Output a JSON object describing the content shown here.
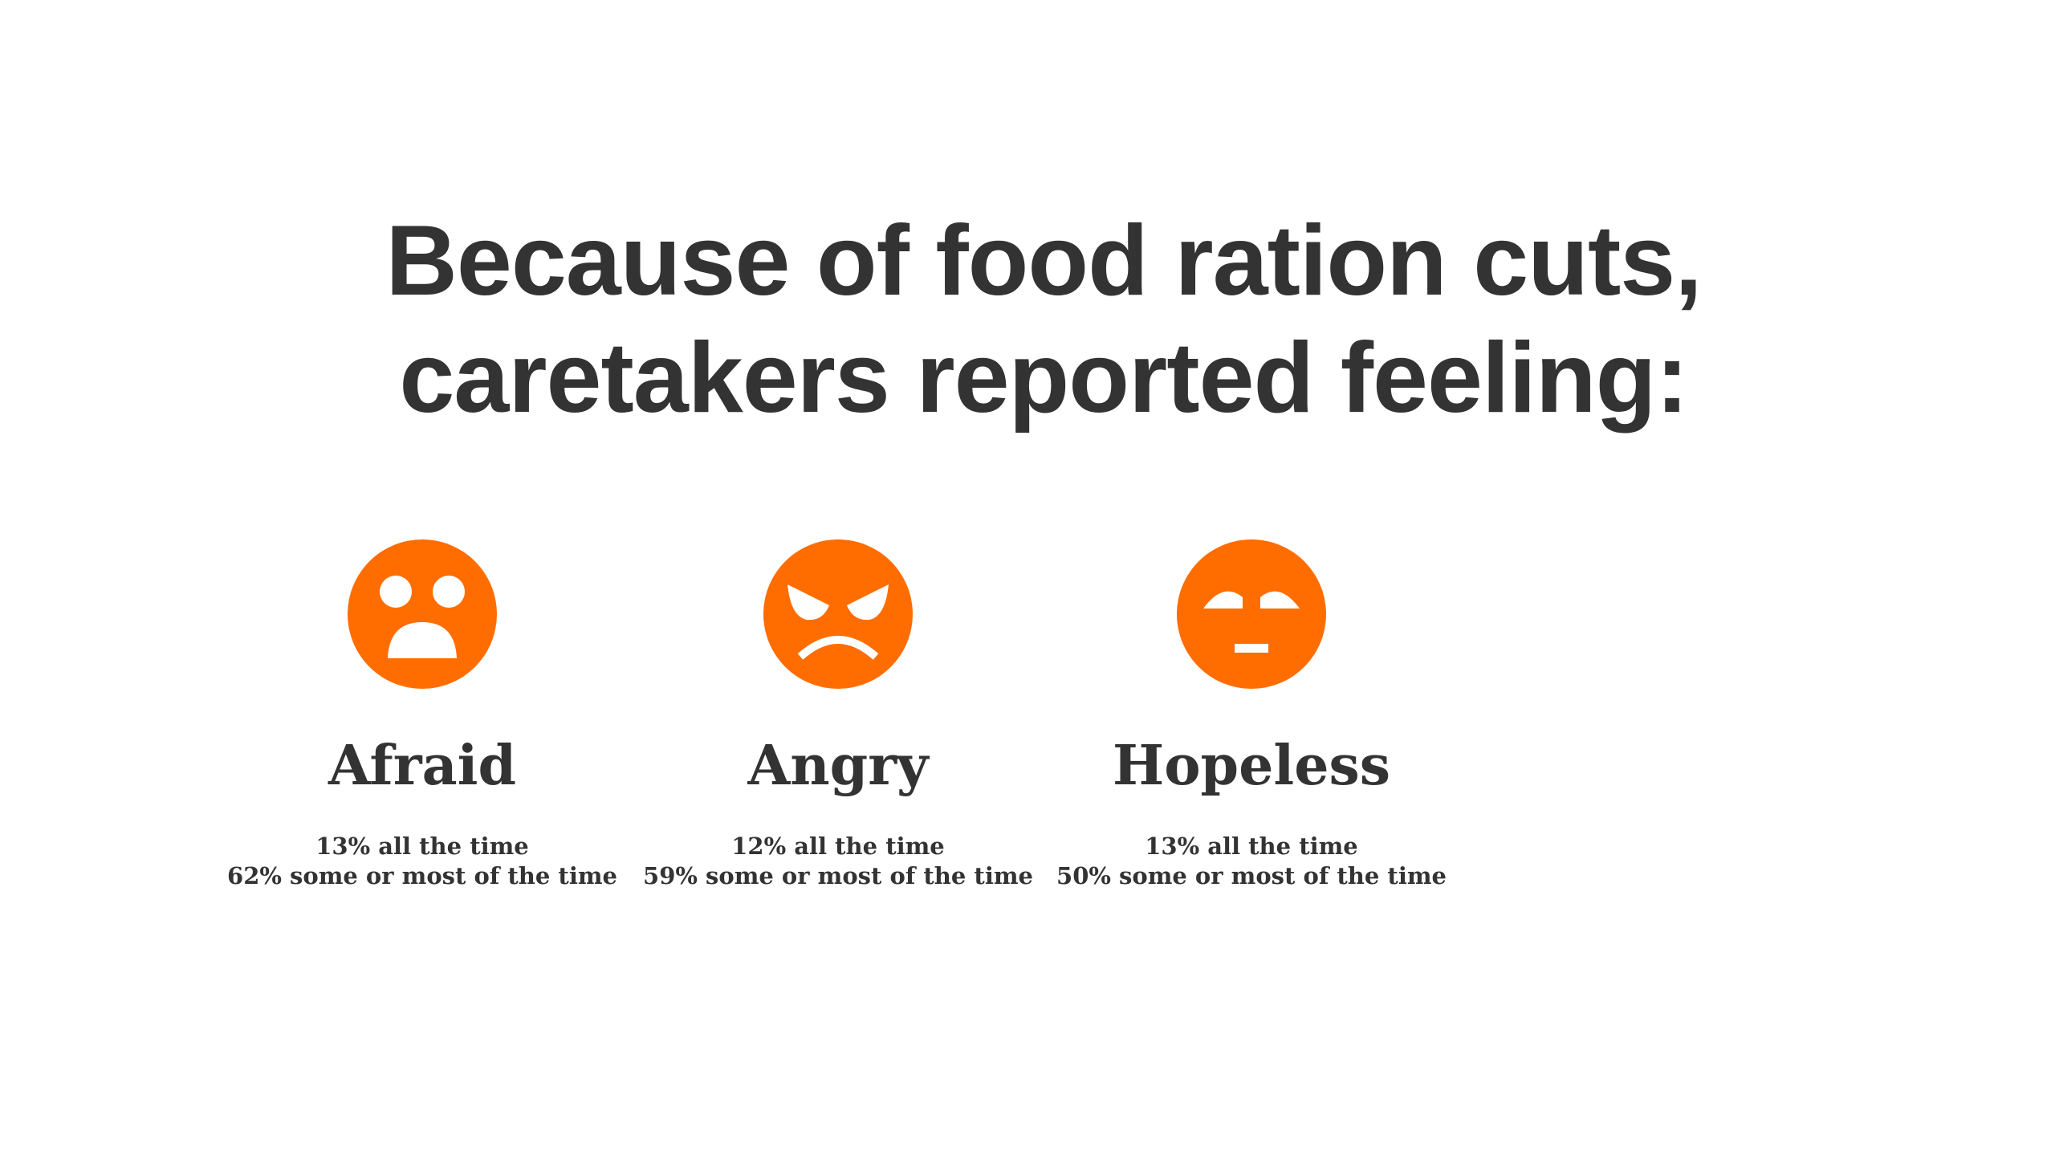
{
  "headline": {
    "line1": "Because of food ration cuts,",
    "line2": "caretakers reported feeling:"
  },
  "colors": {
    "face": "#ff6d00",
    "text": "#333333",
    "background": "#ffffff"
  },
  "feelings": [
    {
      "label": "Afraid",
      "icon": "afraid-face-icon",
      "all_the_time": "13% all the time",
      "some_or_most": "62% some or most of the time"
    },
    {
      "label": "Angry",
      "icon": "angry-face-icon",
      "all_the_time": "12% all the time",
      "some_or_most": "59% some or most of the time"
    },
    {
      "label": "Hopeless",
      "icon": "hopeless-face-icon",
      "all_the_time": "13% all the time",
      "some_or_most": "50% some or most of the time"
    }
  ]
}
